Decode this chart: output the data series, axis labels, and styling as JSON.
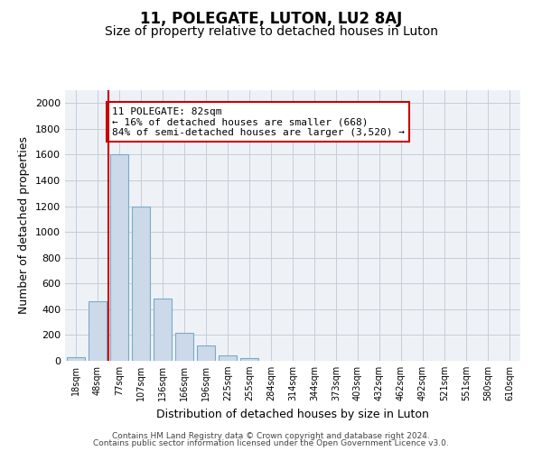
{
  "title": "11, POLEGATE, LUTON, LU2 8AJ",
  "subtitle": "Size of property relative to detached houses in Luton",
  "xlabel": "Distribution of detached houses by size in Luton",
  "ylabel": "Number of detached properties",
  "footer_line1": "Contains HM Land Registry data © Crown copyright and database right 2024.",
  "footer_line2": "Contains public sector information licensed under the Open Government Licence v3.0.",
  "categories": [
    "18sqm",
    "48sqm",
    "77sqm",
    "107sqm",
    "136sqm",
    "166sqm",
    "196sqm",
    "225sqm",
    "255sqm",
    "284sqm",
    "314sqm",
    "344sqm",
    "373sqm",
    "403sqm",
    "432sqm",
    "462sqm",
    "492sqm",
    "521sqm",
    "551sqm",
    "580sqm",
    "610sqm"
  ],
  "values": [
    30,
    460,
    1600,
    1200,
    480,
    215,
    120,
    45,
    20,
    0,
    0,
    0,
    0,
    0,
    0,
    0,
    0,
    0,
    0,
    0,
    0
  ],
  "bar_color": "#ccd9e8",
  "bar_edge_color": "#7aaac8",
  "highlight_index": 2,
  "highlight_line_color": "#cc0000",
  "annotation_text": "11 POLEGATE: 82sqm\n← 16% of detached houses are smaller (668)\n84% of semi-detached houses are larger (3,520) →",
  "annotation_box_color": "#ffffff",
  "annotation_box_edge_color": "#cc0000",
  "ylim": [
    0,
    2100
  ],
  "yticks": [
    0,
    200,
    400,
    600,
    800,
    1000,
    1200,
    1400,
    1600,
    1800,
    2000
  ],
  "bg_color": "#ffffff",
  "plot_bg_color": "#eef2f7",
  "grid_color": "#c5cdd8",
  "title_fontsize": 12,
  "subtitle_fontsize": 10
}
